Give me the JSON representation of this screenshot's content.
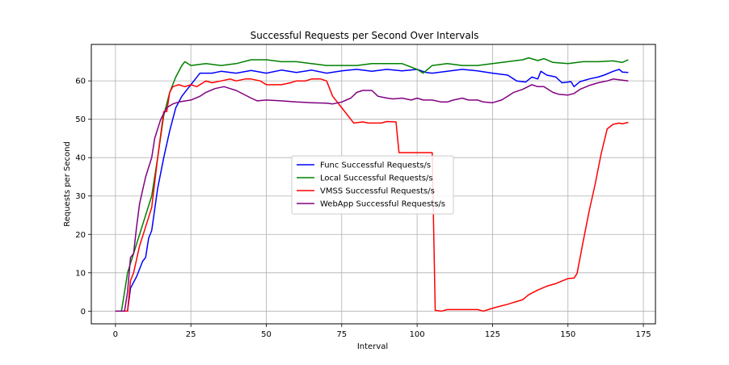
{
  "chart_data": {
    "type": "line",
    "title": "Successful Requests per Second Over Intervals",
    "xlabel": "Interval",
    "ylabel": "Requests per Second",
    "xlim": [
      -8,
      179
    ],
    "ylim": [
      -3.3,
      69.5
    ],
    "xticks": [
      0,
      25,
      50,
      75,
      100,
      125,
      150,
      175
    ],
    "yticks": [
      0,
      10,
      20,
      30,
      40,
      50,
      60
    ],
    "grid": true,
    "legend_position": "center",
    "series": [
      {
        "name": "Func Successful Requests/s",
        "color": "#0000ff",
        "points": [
          [
            0,
            0
          ],
          [
            3,
            0
          ],
          [
            4,
            0
          ],
          [
            5,
            6
          ],
          [
            7,
            9
          ],
          [
            9,
            13
          ],
          [
            10,
            14
          ],
          [
            11,
            19
          ],
          [
            12,
            21
          ],
          [
            14,
            32
          ],
          [
            16,
            40
          ],
          [
            18,
            47
          ],
          [
            20,
            53
          ],
          [
            22,
            56
          ],
          [
            24,
            58
          ],
          [
            26,
            60
          ],
          [
            28,
            62
          ],
          [
            32,
            62
          ],
          [
            35,
            62.5
          ],
          [
            40,
            62
          ],
          [
            45,
            62.7
          ],
          [
            50,
            62
          ],
          [
            55,
            62.8
          ],
          [
            60,
            62.2
          ],
          [
            65,
            62.8
          ],
          [
            70,
            62
          ],
          [
            75,
            62.6
          ],
          [
            80,
            63
          ],
          [
            85,
            62.5
          ],
          [
            90,
            63
          ],
          [
            95,
            62.6
          ],
          [
            100,
            63
          ],
          [
            103,
            62.2
          ],
          [
            105,
            62
          ],
          [
            110,
            62.5
          ],
          [
            115,
            63
          ],
          [
            120,
            62.6
          ],
          [
            125,
            62
          ],
          [
            130,
            61.5
          ],
          [
            133,
            60
          ],
          [
            136,
            59.7
          ],
          [
            138,
            61
          ],
          [
            140,
            60.5
          ],
          [
            141,
            62.5
          ],
          [
            143,
            61.5
          ],
          [
            146,
            61
          ],
          [
            148,
            59.5
          ],
          [
            151,
            59.8
          ],
          [
            152,
            58.5
          ],
          [
            154,
            59.8
          ],
          [
            157,
            60.5
          ],
          [
            160,
            61
          ],
          [
            162,
            61.5
          ],
          [
            165,
            62.5
          ],
          [
            167,
            63
          ],
          [
            168,
            62.3
          ],
          [
            170,
            62.2
          ]
        ]
      },
      {
        "name": "Local Successful Requests/s",
        "color": "#008000",
        "points": [
          [
            0,
            0
          ],
          [
            2,
            0
          ],
          [
            3,
            5
          ],
          [
            4,
            10
          ],
          [
            6,
            15
          ],
          [
            8,
            20
          ],
          [
            10,
            25
          ],
          [
            12,
            30
          ],
          [
            14,
            40
          ],
          [
            16,
            51
          ],
          [
            18,
            57
          ],
          [
            20,
            61
          ],
          [
            22,
            64
          ],
          [
            23,
            65
          ],
          [
            25,
            64
          ],
          [
            30,
            64.5
          ],
          [
            35,
            64
          ],
          [
            40,
            64.5
          ],
          [
            45,
            65.5
          ],
          [
            50,
            65.5
          ],
          [
            55,
            65
          ],
          [
            60,
            65
          ],
          [
            65,
            64.5
          ],
          [
            70,
            64
          ],
          [
            75,
            64
          ],
          [
            80,
            64
          ],
          [
            85,
            64.5
          ],
          [
            90,
            64.5
          ],
          [
            95,
            64.5
          ],
          [
            100,
            63
          ],
          [
            102,
            62
          ],
          [
            105,
            64
          ],
          [
            110,
            64.5
          ],
          [
            115,
            64
          ],
          [
            120,
            64
          ],
          [
            125,
            64.5
          ],
          [
            130,
            65
          ],
          [
            135,
            65.5
          ],
          [
            137,
            66
          ],
          [
            140,
            65.3
          ],
          [
            142,
            65.8
          ],
          [
            145,
            64.8
          ],
          [
            150,
            64.5
          ],
          [
            155,
            65
          ],
          [
            160,
            65
          ],
          [
            165,
            65.2
          ],
          [
            168,
            64.8
          ],
          [
            170,
            65.5
          ]
        ]
      },
      {
        "name": "VMSS Successful Requests/s",
        "color": "#ff0000",
        "points": [
          [
            0,
            0
          ],
          [
            3,
            0
          ],
          [
            4,
            0
          ],
          [
            5,
            8
          ],
          [
            6,
            10
          ],
          [
            8,
            17
          ],
          [
            10,
            22
          ],
          [
            12,
            27
          ],
          [
            14,
            40
          ],
          [
            16,
            52
          ],
          [
            17,
            52
          ],
          [
            18,
            57
          ],
          [
            19,
            58.5
          ],
          [
            21,
            59
          ],
          [
            23,
            58.5
          ],
          [
            25,
            59
          ],
          [
            27,
            58.5
          ],
          [
            30,
            60
          ],
          [
            32,
            59.5
          ],
          [
            35,
            60
          ],
          [
            38,
            60.5
          ],
          [
            40,
            60
          ],
          [
            43,
            60.5
          ],
          [
            45,
            60.5
          ],
          [
            48,
            60
          ],
          [
            50,
            59
          ],
          [
            55,
            59
          ],
          [
            58,
            59.5
          ],
          [
            60,
            60
          ],
          [
            63,
            60
          ],
          [
            65,
            60.5
          ],
          [
            68,
            60.5
          ],
          [
            70,
            60
          ],
          [
            72,
            56
          ],
          [
            75,
            53
          ],
          [
            77,
            51
          ],
          [
            79,
            49
          ],
          [
            82,
            49.3
          ],
          [
            84,
            49
          ],
          [
            88,
            49
          ],
          [
            90,
            49.4
          ],
          [
            93,
            49.3
          ],
          [
            94,
            41.3
          ],
          [
            100,
            41.3
          ],
          [
            105,
            41.3
          ],
          [
            106,
            0.2
          ],
          [
            108,
            0
          ],
          [
            110,
            0.4
          ],
          [
            115,
            0.4
          ],
          [
            120,
            0.4
          ],
          [
            122,
            0
          ],
          [
            124,
            0.5
          ],
          [
            126,
            1
          ],
          [
            130,
            1.8
          ],
          [
            135,
            3
          ],
          [
            137,
            4.3
          ],
          [
            140,
            5.5
          ],
          [
            143,
            6.5
          ],
          [
            146,
            7.2
          ],
          [
            150,
            8.5
          ],
          [
            152,
            8.6
          ],
          [
            153,
            9.8
          ],
          [
            155,
            18
          ],
          [
            157,
            26
          ],
          [
            159,
            33
          ],
          [
            161,
            41
          ],
          [
            163,
            47.5
          ],
          [
            165,
            48.7
          ],
          [
            167,
            49
          ],
          [
            168,
            48.8
          ],
          [
            170,
            49.2
          ]
        ]
      },
      {
        "name": "WebApp Successful Requests/s",
        "color": "#800080",
        "points": [
          [
            0,
            0
          ],
          [
            3,
            0
          ],
          [
            4,
            5
          ],
          [
            5,
            14
          ],
          [
            6,
            15
          ],
          [
            7,
            22
          ],
          [
            8,
            28
          ],
          [
            10,
            35
          ],
          [
            12,
            40
          ],
          [
            13,
            45
          ],
          [
            15,
            50
          ],
          [
            17,
            53
          ],
          [
            19,
            54
          ],
          [
            21,
            54.5
          ],
          [
            25,
            55
          ],
          [
            28,
            56
          ],
          [
            30,
            57
          ],
          [
            33,
            58
          ],
          [
            36,
            58.5
          ],
          [
            38,
            58
          ],
          [
            40,
            57.5
          ],
          [
            45,
            55.5
          ],
          [
            47,
            54.8
          ],
          [
            50,
            55
          ],
          [
            55,
            54.8
          ],
          [
            60,
            54.5
          ],
          [
            65,
            54.3
          ],
          [
            70,
            54.2
          ],
          [
            72,
            54
          ],
          [
            75,
            54.5
          ],
          [
            78,
            55.5
          ],
          [
            80,
            57
          ],
          [
            82,
            57.5
          ],
          [
            85,
            57.5
          ],
          [
            87,
            56
          ],
          [
            90,
            55.5
          ],
          [
            92,
            55.3
          ],
          [
            95,
            55.5
          ],
          [
            98,
            55
          ],
          [
            100,
            55.5
          ],
          [
            102,
            55
          ],
          [
            105,
            55
          ],
          [
            108,
            54.5
          ],
          [
            110,
            54.5
          ],
          [
            112,
            55
          ],
          [
            115,
            55.5
          ],
          [
            117,
            55
          ],
          [
            120,
            55
          ],
          [
            122,
            54.5
          ],
          [
            125,
            54.3
          ],
          [
            128,
            55
          ],
          [
            130,
            56
          ],
          [
            132,
            57
          ],
          [
            135,
            57.8
          ],
          [
            138,
            59
          ],
          [
            140,
            58.5
          ],
          [
            142,
            58.5
          ],
          [
            145,
            57
          ],
          [
            147,
            56.5
          ],
          [
            150,
            56.3
          ],
          [
            152,
            56.7
          ],
          [
            154,
            57.8
          ],
          [
            157,
            58.8
          ],
          [
            160,
            59.5
          ],
          [
            163,
            60
          ],
          [
            165,
            60.5
          ],
          [
            168,
            60.2
          ],
          [
            170,
            60
          ]
        ]
      }
    ]
  }
}
